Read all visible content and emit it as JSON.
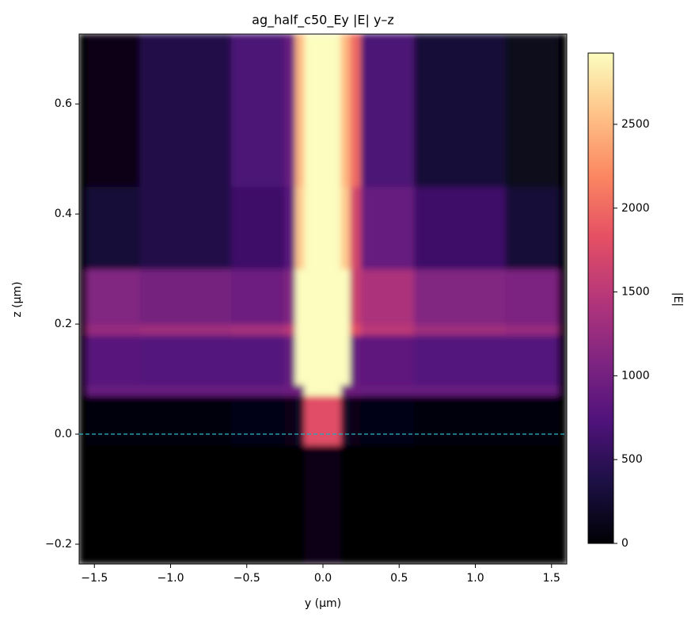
{
  "chart_data": {
    "type": "heatmap",
    "title": "ag_half_c50_Ey |E| y–z",
    "xlabel": "y (µm)",
    "ylabel": "z (µm)",
    "colorbar_label": "|E|",
    "colormap": [
      "#000004",
      "#1c1044",
      "#4f127b",
      "#812581",
      "#b5367a",
      "#e55064",
      "#fb8761",
      "#fec287",
      "#fcfdbf"
    ],
    "x_edges": [
      -1.6,
      -1.55,
      -1.2,
      -0.6,
      -0.25,
      -0.18,
      -0.12,
      0.12,
      0.18,
      0.25,
      0.6,
      1.2,
      1.55,
      1.6
    ],
    "y_edges": [
      -0.236,
      -0.02,
      0.07,
      0.09,
      0.18,
      0.2,
      0.3,
      0.45,
      0.727
    ],
    "values": [
      [
        0,
        0,
        0,
        0,
        0,
        0,
        100,
        0,
        0,
        0,
        0,
        0,
        0
      ],
      [
        0,
        50,
        50,
        80,
        100,
        200,
        1800,
        200,
        100,
        80,
        50,
        50,
        0
      ],
      [
        0,
        900,
        900,
        900,
        950,
        1000,
        2925,
        1000,
        950,
        900,
        900,
        900,
        0
      ],
      [
        0,
        800,
        750,
        750,
        900,
        2925,
        2925,
        2925,
        900,
        850,
        750,
        750,
        0
      ],
      [
        0,
        1250,
        1300,
        1350,
        1500,
        2925,
        2925,
        2925,
        1800,
        1500,
        1300,
        1250,
        0
      ],
      [
        0,
        1100,
        1000,
        950,
        1100,
        2925,
        2925,
        2925,
        1600,
        1400,
        1100,
        1050,
        0
      ],
      [
        0,
        300,
        400,
        600,
        800,
        2600,
        2925,
        2600,
        1700,
        900,
        600,
        300,
        0
      ],
      [
        0,
        100,
        400,
        700,
        900,
        2500,
        2925,
        2500,
        2000,
        700,
        300,
        150,
        0
      ]
    ],
    "xlim": [
      -1.6,
      1.6
    ],
    "ylim": [
      -0.236,
      0.727
    ],
    "clim": [
      0,
      2925
    ],
    "xticks": [
      {
        "value": -1.5,
        "label": "−1.5"
      },
      {
        "value": -1.0,
        "label": "−1.0"
      },
      {
        "value": -0.5,
        "label": "−0.5"
      },
      {
        "value": 0,
        "label": "0.0"
      },
      {
        "value": 0.5,
        "label": "0.5"
      },
      {
        "value": 1.0,
        "label": "1.0"
      },
      {
        "value": 1.5,
        "label": "1.5"
      }
    ],
    "yticks": [
      {
        "value": -0.2,
        "label": "−0.2"
      },
      {
        "value": 0,
        "label": "0.0"
      },
      0.2,
      0.4,
      0.6
    ],
    "cticks": [
      0,
      500,
      1000,
      1500,
      2000,
      2500
    ],
    "hline": {
      "value": 0,
      "color": "#2aa7b8"
    }
  }
}
